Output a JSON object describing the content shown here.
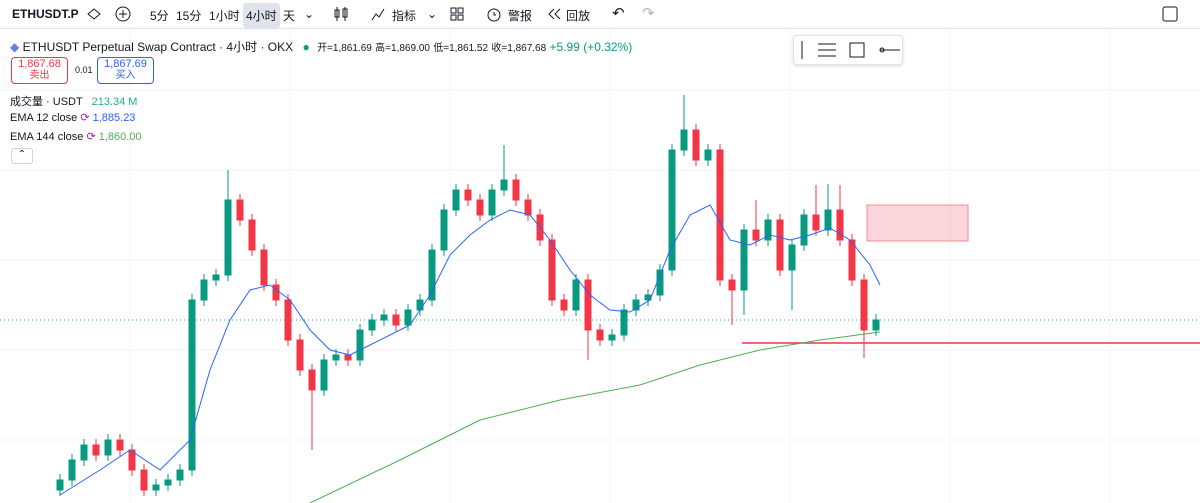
{
  "toolbar": {
    "symbol": "ETHUSDT.P",
    "intervals": [
      "5分",
      "15分",
      "1小时",
      "4小时",
      "天"
    ],
    "indicators": "指标",
    "alert": "警报",
    "replay": "回放"
  },
  "legend": {
    "title": "ETHUSDT Perpetual Swap Contract · 4小时 · OKX",
    "ohlc": [
      "开=1,861.69",
      "高=1,869.00",
      "低=1,861.52",
      "收=1,867.68"
    ],
    "change": "+5.99 (+0.32%)",
    "sell": {
      "price": "1,867.68",
      "label": "卖出"
    },
    "spread": "0.01",
    "buy": {
      "price": "1,867.69",
      "label": "买入"
    },
    "studies": [
      {
        "name": "成交量 · USDT",
        "value": "213.34 M"
      },
      {
        "name": "EMA 12 close",
        "value": "1,885.23"
      },
      {
        "name": "EMA 144 close",
        "value": "1,860.00"
      }
    ]
  }
}
